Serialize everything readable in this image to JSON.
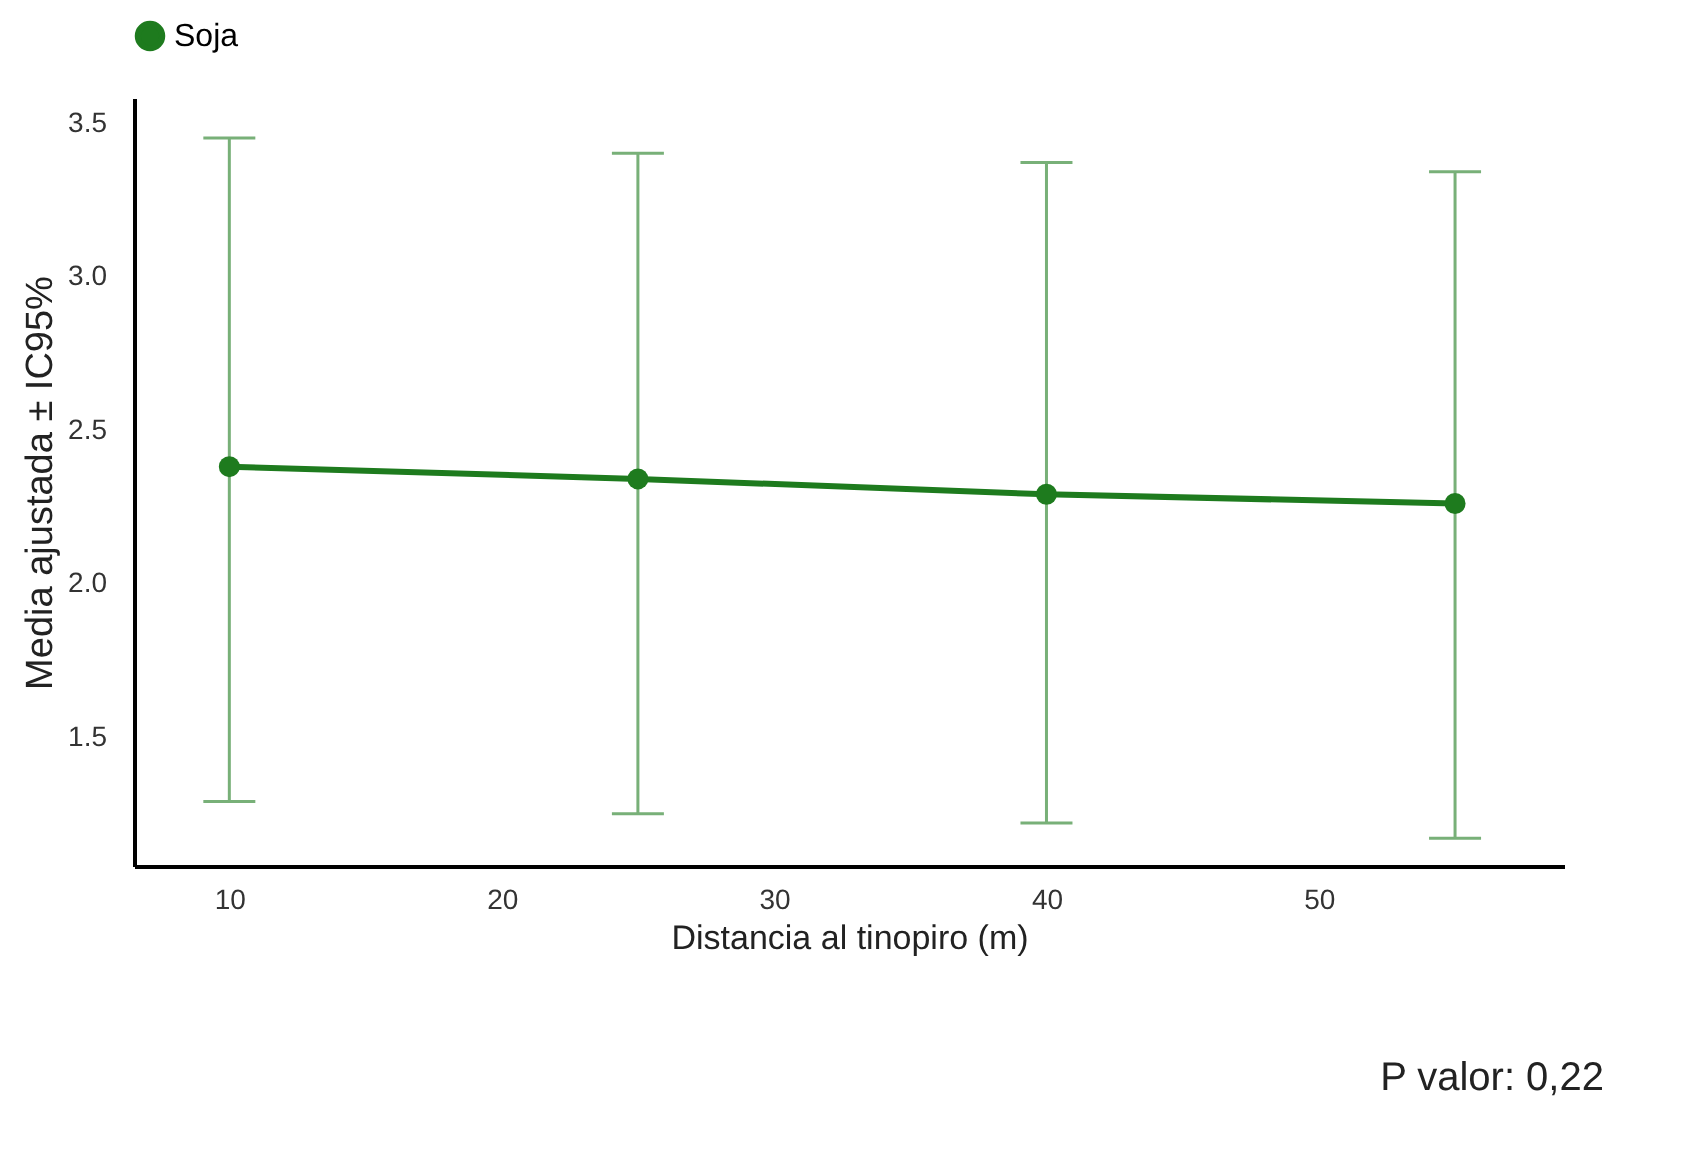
{
  "chart_data": {
    "type": "line",
    "xlabel": "Distancia al tinopiro (m)",
    "ylabel": "Media ajustada ± IC95%",
    "x": [
      10,
      25,
      40,
      55
    ],
    "series": [
      {
        "name": "Soja",
        "color": "#1e7b1e",
        "values": [
          2.38,
          2.34,
          2.29,
          2.26
        ],
        "errors": [
          [
            1.29,
            3.45
          ],
          [
            1.25,
            3.4
          ],
          [
            1.22,
            3.37
          ],
          [
            1.17,
            3.34
          ]
        ]
      }
    ],
    "xlim": [
      6.5,
      59
    ],
    "xticks": [
      10,
      20,
      30,
      40,
      50
    ],
    "ylim": [
      1.08,
      3.58
    ],
    "yticks": [
      1.5,
      {
        "value": 2,
        "label": "2.0"
      },
      2.5,
      {
        "value": 3,
        "label": "3.0"
      },
      3.5
    ],
    "marker": "circle",
    "line_style": "solid",
    "grid": false,
    "legend": "top",
    "annotations": [
      "P valor: 0,22"
    ]
  }
}
